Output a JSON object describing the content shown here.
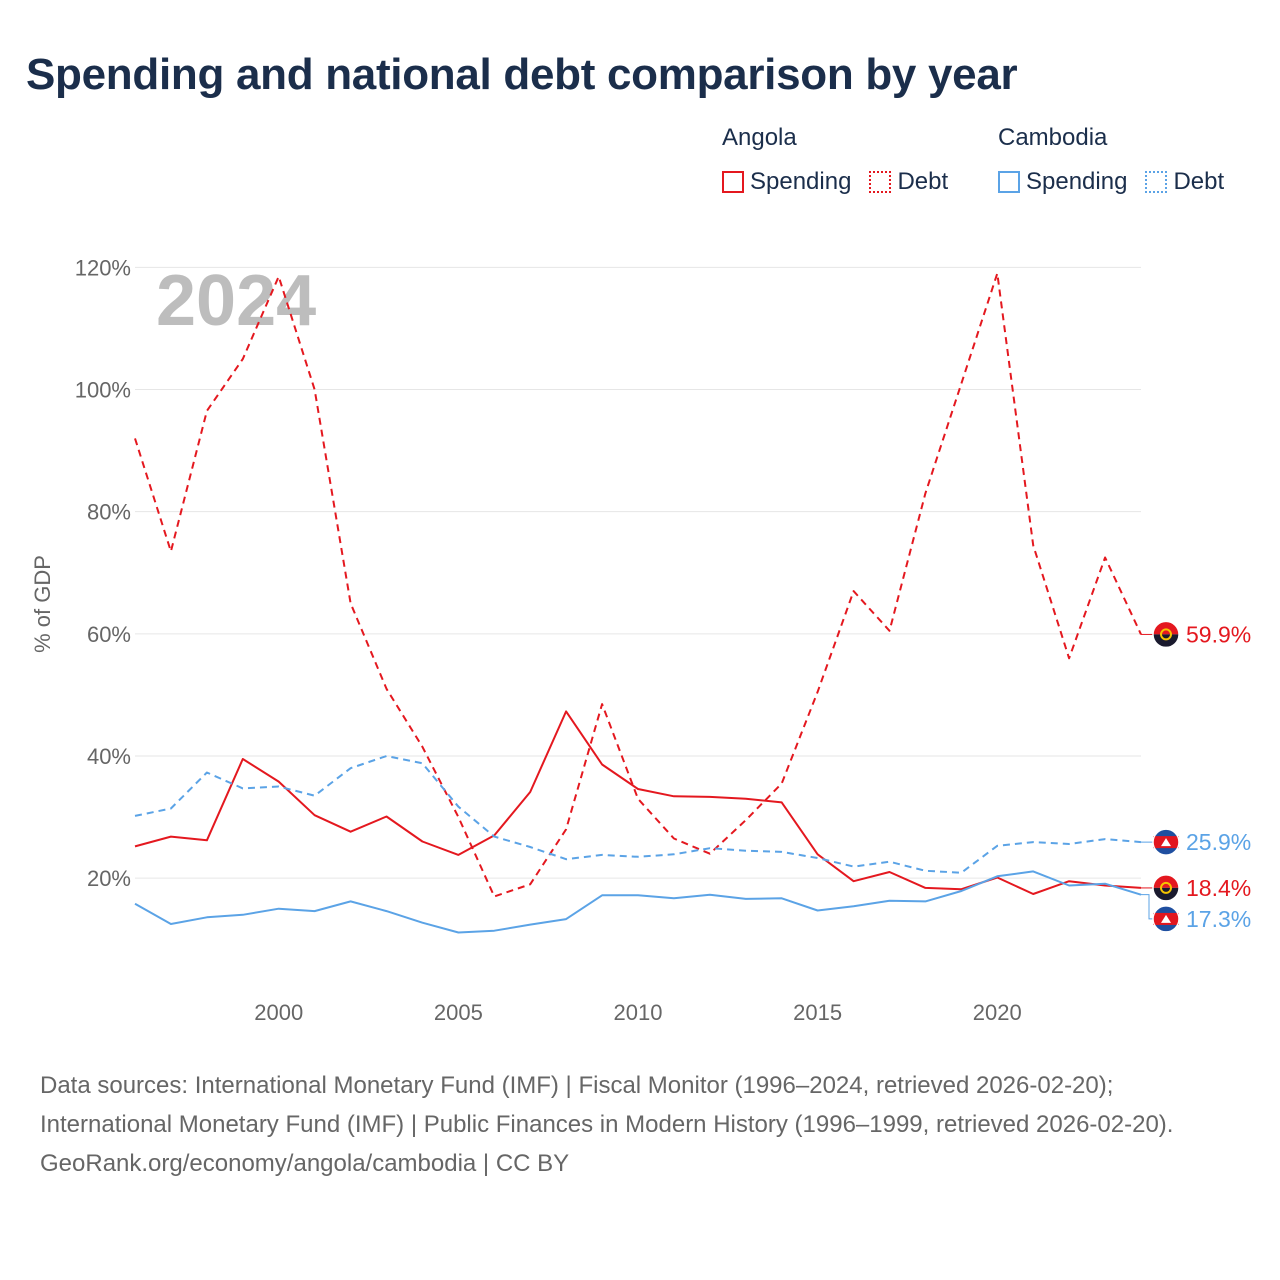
{
  "title": "Spending and national debt comparison by year",
  "legend": {
    "groups": [
      {
        "name": "Angola",
        "color": "#e4181f",
        "items": [
          {
            "label": "Spending",
            "style": "solid"
          },
          {
            "label": "Debt",
            "style": "dotted"
          }
        ]
      },
      {
        "name": "Cambodia",
        "color": "#5ba3e6",
        "items": [
          {
            "label": "Spending",
            "style": "solid"
          },
          {
            "label": "Debt",
            "style": "dotted"
          }
        ]
      }
    ]
  },
  "chart_data": {
    "type": "line",
    "year_label": "2024",
    "ylabel": "% of GDP",
    "xlabel": "",
    "xlim": [
      1996,
      2024
    ],
    "ylim": [
      3,
      123
    ],
    "x_ticks": [
      2000,
      2005,
      2010,
      2015,
      2020
    ],
    "y_ticks": [
      20,
      40,
      60,
      80,
      100,
      120
    ],
    "y_tick_format": "{v}%",
    "gridlines": true,
    "x": [
      1996,
      1997,
      1998,
      1999,
      2000,
      2001,
      2002,
      2003,
      2004,
      2005,
      2006,
      2007,
      2008,
      2009,
      2010,
      2011,
      2012,
      2013,
      2014,
      2015,
      2016,
      2017,
      2018,
      2019,
      2020,
      2021,
      2022,
      2023,
      2024
    ],
    "series": [
      {
        "name": "Angola Debt",
        "country": "Angola",
        "kind": "Debt",
        "color": "#e4181f",
        "dash": true,
        "values": [
          92,
          73.5,
          96.5,
          105,
          118.5,
          100,
          65,
          51,
          41.5,
          30,
          17,
          19,
          28,
          48.5,
          33,
          26.5,
          24,
          29.5,
          35.5,
          50.5,
          67,
          60.5,
          83,
          101,
          119,
          74.5,
          56,
          72.5,
          59.9
        ],
        "end_label": "59.9%"
      },
      {
        "name": "Angola Spending",
        "country": "Angola",
        "kind": "Spending",
        "color": "#e4181f",
        "dash": false,
        "values": [
          25.2,
          26.8,
          26.2,
          39.5,
          35.8,
          30.3,
          27.6,
          30.1,
          26,
          23.8,
          27,
          34.1,
          47.3,
          38.6,
          34.6,
          33.4,
          33.3,
          33,
          32.4,
          23.9,
          19.5,
          21,
          18.4,
          18.2,
          20.1,
          17.4,
          19.5,
          18.8,
          18.4
        ],
        "end_label": "18.4%"
      },
      {
        "name": "Cambodia Debt",
        "country": "Cambodia",
        "kind": "Debt",
        "color": "#5ba3e6",
        "dash": true,
        "values": [
          30.2,
          31.4,
          37.3,
          34.7,
          35,
          33.5,
          38,
          40,
          38.8,
          31.7,
          26.8,
          25.1,
          23.1,
          23.8,
          23.5,
          23.9,
          24.9,
          24.5,
          24.3,
          23.3,
          21.9,
          22.7,
          21.2,
          20.9,
          25.3,
          25.9,
          25.6,
          26.4,
          25.9
        ],
        "end_label": "25.9%"
      },
      {
        "name": "Cambodia Spending",
        "country": "Cambodia",
        "kind": "Spending",
        "color": "#5ba3e6",
        "dash": false,
        "values": [
          15.8,
          12.5,
          13.6,
          14,
          15,
          14.6,
          16.2,
          14.6,
          12.7,
          11.1,
          11.4,
          12.4,
          13.3,
          17.2,
          17.2,
          16.7,
          17.3,
          16.6,
          16.7,
          14.7,
          15.4,
          16.3,
          16.2,
          17.9,
          20.3,
          21.1,
          18.8,
          19.1,
          17.3
        ],
        "end_label": "17.3%"
      }
    ]
  },
  "footer": {
    "sources": "Data sources: International Monetary Fund (IMF) | Fiscal Monitor (1996–2024, retrieved 2026-02-20); International Monetary Fund (IMF) | Public Finances in Modern History (1996–1999, retrieved 2026-02-20).",
    "credit": "GeoRank.org/economy/angola/cambodia | CC BY"
  }
}
